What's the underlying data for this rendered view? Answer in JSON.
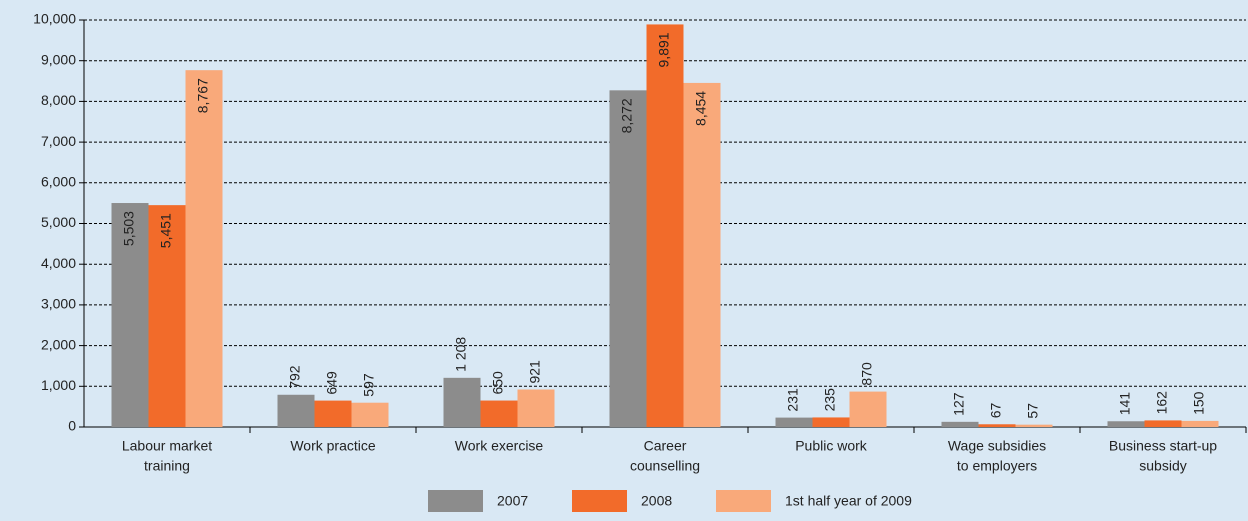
{
  "chart_data": {
    "type": "bar",
    "categories": [
      [
        "Labour market",
        "training"
      ],
      [
        "Work practice"
      ],
      [
        "Work exercise"
      ],
      [
        "Career",
        "counselling"
      ],
      [
        "Public work"
      ],
      [
        "Wage subsidies",
        "to employers"
      ],
      [
        "Business start-up",
        "subsidy"
      ]
    ],
    "series": [
      {
        "name": "2007",
        "color": "#8c8c8c",
        "values": [
          5503,
          792,
          1208,
          8272,
          231,
          127,
          141
        ],
        "value_labels": [
          "5,503",
          "792",
          "1 208",
          "8,272",
          "231",
          "127",
          "141"
        ]
      },
      {
        "name": "2008",
        "color": "#f26b2a",
        "values": [
          5451,
          649,
          650,
          9891,
          235,
          67,
          162
        ],
        "value_labels": [
          "5,451",
          "649",
          "650",
          "9,891",
          "235",
          "67",
          "162"
        ]
      },
      {
        "name": "1st half year of 2009",
        "color": "#f9a97a",
        "values": [
          8767,
          597,
          921,
          8454,
          870,
          57,
          150
        ],
        "value_labels": [
          "8,767",
          "597",
          "921",
          "8,454",
          "870",
          "57",
          "150"
        ]
      }
    ],
    "ylim": [
      0,
      10000
    ],
    "yticks": [
      0,
      {
        "value": 1000,
        "label": "1,000"
      },
      {
        "value": 2000,
        "label": "2,000"
      },
      {
        "value": 3000,
        "label": "3,000"
      },
      {
        "value": 4000,
        "label": "4,000"
      },
      {
        "value": 5000,
        "label": "5,000"
      },
      {
        "value": 6000,
        "label": "6,000"
      },
      {
        "value": 7000,
        "label": "7,000"
      },
      {
        "value": 8000,
        "label": "8,000"
      },
      {
        "value": 9000,
        "label": "9,000"
      },
      {
        "value": 10000,
        "label": "10,000"
      }
    ],
    "grid": true,
    "legend": "bottom"
  }
}
